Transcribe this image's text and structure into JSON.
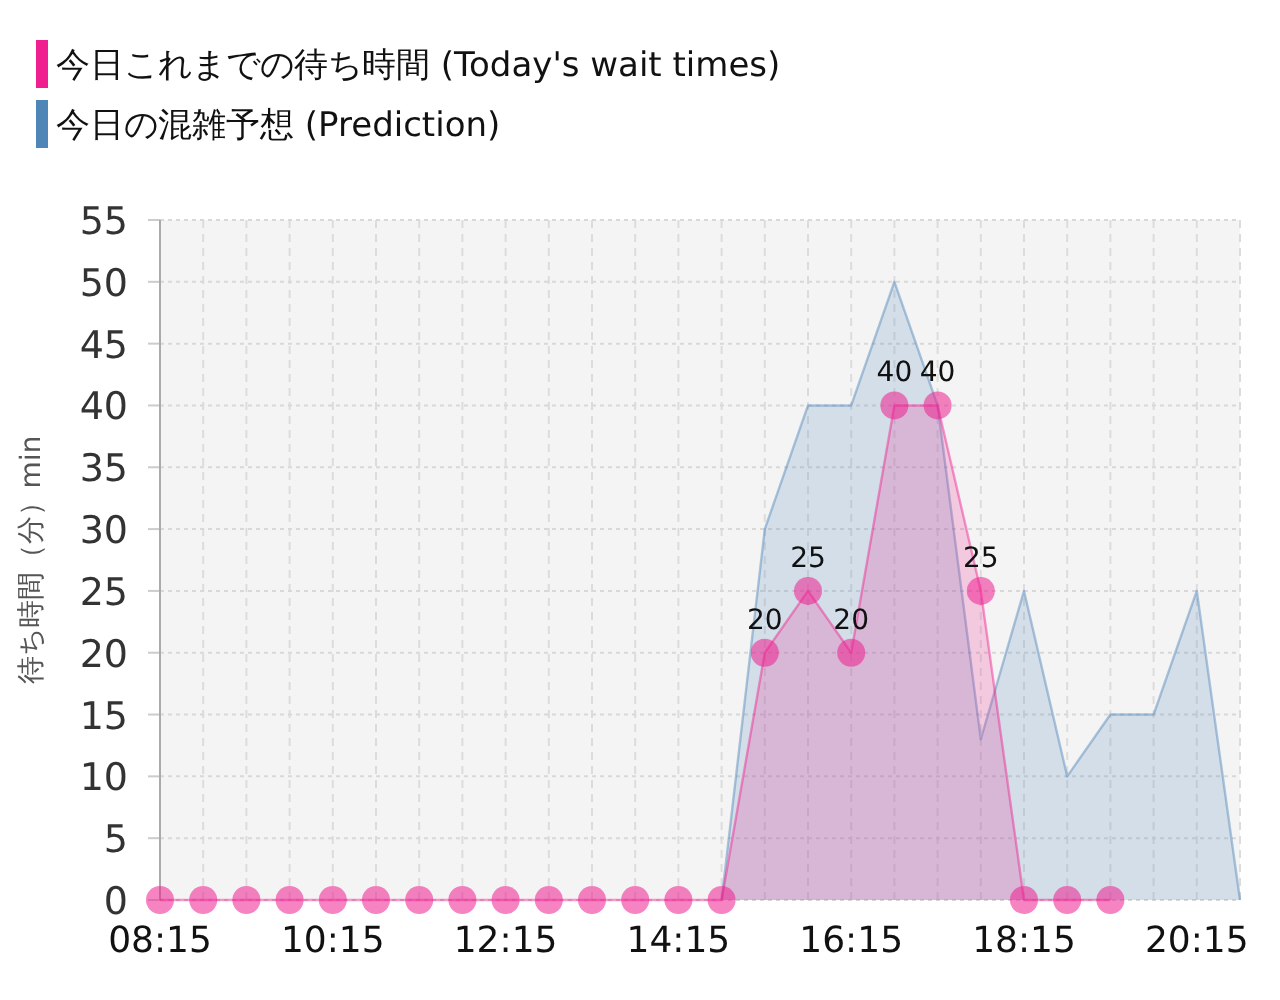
{
  "chart_data": {
    "type": "area",
    "ylabel": "待ち時間（分）min",
    "legend": "top left",
    "grid": true,
    "xlim": [
      8.25,
      20.75
    ],
    "xticks": [
      {
        "value": 8.25,
        "label": "08:15"
      },
      {
        "value": 8.75,
        "label": null
      },
      {
        "value": 9.25,
        "label": null
      },
      {
        "value": 9.75,
        "label": null
      },
      {
        "value": 10.25,
        "label": "10:15"
      },
      {
        "value": 10.75,
        "label": null
      },
      {
        "value": 11.25,
        "label": null
      },
      {
        "value": 11.75,
        "label": null
      },
      {
        "value": 12.25,
        "label": "12:15"
      },
      {
        "value": 12.75,
        "label": null
      },
      {
        "value": 13.25,
        "label": null
      },
      {
        "value": 13.75,
        "label": null
      },
      {
        "value": 14.25,
        "label": "14:15"
      },
      {
        "value": 14.75,
        "label": null
      },
      {
        "value": 15.25,
        "label": null
      },
      {
        "value": 15.75,
        "label": null
      },
      {
        "value": 16.25,
        "label": "16:15"
      },
      {
        "value": 16.75,
        "label": null
      },
      {
        "value": 17.25,
        "label": null
      },
      {
        "value": 17.75,
        "label": null
      },
      {
        "value": 18.25,
        "label": "18:15"
      },
      {
        "value": 18.75,
        "label": null
      },
      {
        "value": 19.25,
        "label": null
      },
      {
        "value": 19.75,
        "label": null
      },
      {
        "value": 20.25,
        "label": "20:15"
      },
      {
        "value": 20.75,
        "label": null
      }
    ],
    "ylim": [
      0,
      55
    ],
    "yticks": [
      0,
      5,
      10,
      15,
      20,
      25,
      30,
      35,
      40,
      45,
      50,
      55
    ],
    "series": [
      {
        "name": "今日の混雑予想 (Prediction)",
        "color": "#4f86b8",
        "marker": "none",
        "x": [
          14.75,
          15.25,
          15.75,
          16.25,
          16.75,
          17.25,
          17.75,
          18.25,
          18.75,
          19.25,
          19.75,
          20.25,
          20.75
        ],
        "values": [
          0,
          30,
          40,
          40,
          50,
          40,
          13,
          25,
          10,
          15,
          15,
          25,
          0
        ]
      },
      {
        "name": "今日これまでの待ち時間 (Today's wait times)",
        "color": "#ef1f8f",
        "marker": "circle",
        "x": [
          8.25,
          8.75,
          9.25,
          9.75,
          10.25,
          10.75,
          11.25,
          11.75,
          12.25,
          12.75,
          13.25,
          13.75,
          14.25,
          14.75,
          15.25,
          15.75,
          16.25,
          16.75,
          17.25,
          17.75,
          18.25,
          18.75,
          19.25
        ],
        "values": [
          0,
          0,
          0,
          0,
          0,
          0,
          0,
          0,
          0,
          0,
          0,
          0,
          0,
          0,
          20,
          25,
          20,
          40,
          40,
          25,
          0,
          0,
          0
        ],
        "value_labels": [
          null,
          null,
          null,
          null,
          null,
          null,
          null,
          null,
          null,
          null,
          null,
          null,
          null,
          null,
          "20",
          "25",
          "20",
          "40",
          "40",
          "25",
          null,
          null,
          null
        ]
      }
    ]
  }
}
